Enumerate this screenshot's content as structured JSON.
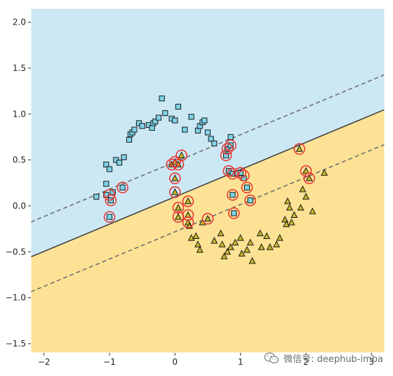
{
  "chart_data": {
    "type": "scatter",
    "title": "",
    "xlabel": "",
    "ylabel": "",
    "xlim": [
      -2.2,
      3.2
    ],
    "ylim": [
      -1.6,
      2.15
    ],
    "grid": false,
    "legend": "none",
    "xticks": [
      -2,
      -1,
      0,
      1,
      2,
      3
    ],
    "yticks": [
      -1.5,
      -1.0,
      -0.5,
      0.0,
      0.5,
      1.0,
      1.5,
      2.0
    ],
    "xtick_labels": [
      "−2",
      "−1",
      "0",
      "1",
      "2",
      "3"
    ],
    "ytick_labels": [
      "−1.5",
      "−1.0",
      "−0.5",
      "0.0",
      "0.5",
      "1.0",
      "1.5",
      "2.0"
    ],
    "colors": {
      "region_class0": "#cce8f4",
      "region_class1": "#fde295",
      "class0_marker": "#7dd3e8",
      "class1_marker": "#c8b62a",
      "support_vector_ring": "#e53935",
      "boundary": "#444444"
    },
    "decision_boundary": {
      "slope": 0.297,
      "intercept": 0.098,
      "margin_offset": 0.38
    },
    "series": [
      {
        "marker": "square",
        "values": [
          [
            -1.2,
            0.1
          ],
          [
            -1.05,
            0.45
          ],
          [
            -1.05,
            0.24
          ],
          [
            -1.0,
            0.4
          ],
          [
            -0.95,
            0.15
          ],
          [
            -0.9,
            0.5
          ],
          [
            -0.85,
            0.47
          ],
          [
            -0.78,
            0.53
          ],
          [
            -0.7,
            0.72
          ],
          [
            -0.68,
            0.78
          ],
          [
            -0.65,
            0.8
          ],
          [
            -0.62,
            0.83
          ],
          [
            -0.55,
            0.9
          ],
          [
            -0.5,
            0.87
          ],
          [
            -0.4,
            0.88
          ],
          [
            -0.35,
            0.85
          ],
          [
            -0.33,
            0.9
          ],
          [
            -0.3,
            0.92
          ],
          [
            -0.25,
            0.96
          ],
          [
            -0.2,
            1.17
          ],
          [
            -0.15,
            1.01
          ],
          [
            -0.05,
            0.95
          ],
          [
            0.0,
            0.93
          ],
          [
            0.05,
            1.08
          ],
          [
            0.15,
            0.83
          ],
          [
            0.25,
            0.97
          ],
          [
            0.35,
            0.82
          ],
          [
            0.38,
            0.87
          ],
          [
            0.42,
            0.91
          ],
          [
            0.45,
            0.93
          ],
          [
            0.5,
            0.8
          ],
          [
            0.55,
            0.73
          ],
          [
            0.6,
            0.68
          ],
          [
            0.78,
            0.55
          ],
          [
            0.8,
            0.62
          ],
          [
            0.85,
            0.66
          ],
          [
            0.85,
            0.75
          ],
          [
            0.82,
            0.38
          ],
          [
            0.88,
            0.35
          ],
          [
            0.95,
            0.35
          ],
          [
            1.0,
            0.36
          ],
          [
            1.05,
            0.3
          ],
          [
            1.1,
            0.2
          ],
          [
            1.15,
            0.06
          ],
          [
            0.88,
            0.12
          ],
          [
            0.9,
            -0.08
          ],
          [
            -1.0,
            -0.12
          ],
          [
            -0.8,
            0.2
          ],
          [
            -1.05,
            0.12
          ],
          [
            -0.98,
            0.06
          ]
        ]
      },
      {
        "marker": "triangle",
        "values": [
          [
            -0.05,
            0.45
          ],
          [
            0.0,
            0.48
          ],
          [
            0.05,
            0.45
          ],
          [
            0.1,
            0.55
          ],
          [
            0.0,
            0.3
          ],
          [
            0.0,
            0.15
          ],
          [
            0.05,
            -0.02
          ],
          [
            0.2,
            0.05
          ],
          [
            0.05,
            -0.12
          ],
          [
            0.2,
            -0.1
          ],
          [
            0.2,
            -0.18
          ],
          [
            0.22,
            -0.22
          ],
          [
            0.25,
            -0.35
          ],
          [
            0.32,
            -0.33
          ],
          [
            0.35,
            -0.42
          ],
          [
            0.38,
            -0.48
          ],
          [
            0.42,
            -0.18
          ],
          [
            0.5,
            -0.14
          ],
          [
            0.6,
            -0.38
          ],
          [
            0.7,
            -0.3
          ],
          [
            0.72,
            -0.42
          ],
          [
            0.75,
            -0.55
          ],
          [
            0.8,
            -0.5
          ],
          [
            0.85,
            -0.45
          ],
          [
            0.92,
            -0.4
          ],
          [
            1.0,
            -0.35
          ],
          [
            1.02,
            -0.52
          ],
          [
            1.1,
            -0.48
          ],
          [
            1.15,
            -0.4
          ],
          [
            1.18,
            -0.6
          ],
          [
            1.3,
            -0.3
          ],
          [
            1.32,
            -0.45
          ],
          [
            1.4,
            -0.33
          ],
          [
            1.45,
            -0.45
          ],
          [
            1.55,
            -0.42
          ],
          [
            1.6,
            -0.35
          ],
          [
            1.68,
            -0.15
          ],
          [
            1.7,
            -0.2
          ],
          [
            1.72,
            0.05
          ],
          [
            1.75,
            -0.02
          ],
          [
            1.78,
            -0.18
          ],
          [
            1.82,
            -0.1
          ],
          [
            1.92,
            -0.02
          ],
          [
            1.95,
            0.18
          ],
          [
            2.0,
            0.1
          ],
          [
            2.05,
            0.3
          ],
          [
            2.1,
            -0.06
          ],
          [
            2.28,
            0.36
          ],
          [
            1.9,
            0.62
          ],
          [
            2.0,
            0.38
          ]
        ]
      }
    ],
    "support_vectors": [
      [
        -1.0,
        0.12
      ],
      [
        -0.98,
        0.06
      ],
      [
        -1.0,
        -0.12
      ],
      [
        -0.8,
        0.2
      ],
      [
        -0.05,
        0.45
      ],
      [
        0.0,
        0.48
      ],
      [
        0.05,
        0.45
      ],
      [
        0.1,
        0.55
      ],
      [
        0.0,
        0.3
      ],
      [
        0.0,
        0.15
      ],
      [
        0.05,
        -0.02
      ],
      [
        0.2,
        0.05
      ],
      [
        0.05,
        -0.12
      ],
      [
        0.2,
        -0.1
      ],
      [
        0.2,
        -0.18
      ],
      [
        0.5,
        -0.14
      ],
      [
        0.78,
        0.55
      ],
      [
        0.8,
        0.62
      ],
      [
        0.85,
        0.66
      ],
      [
        0.82,
        0.38
      ],
      [
        0.88,
        0.35
      ],
      [
        1.0,
        0.36
      ],
      [
        1.05,
        0.33
      ],
      [
        1.1,
        0.2
      ],
      [
        1.15,
        0.06
      ],
      [
        0.88,
        0.12
      ],
      [
        0.9,
        -0.08
      ],
      [
        1.9,
        0.62
      ],
      [
        2.0,
        0.38
      ],
      [
        2.05,
        0.3
      ]
    ]
  },
  "watermark": {
    "icon": "wechat-icon",
    "text": "微信号: deephub-imba"
  }
}
